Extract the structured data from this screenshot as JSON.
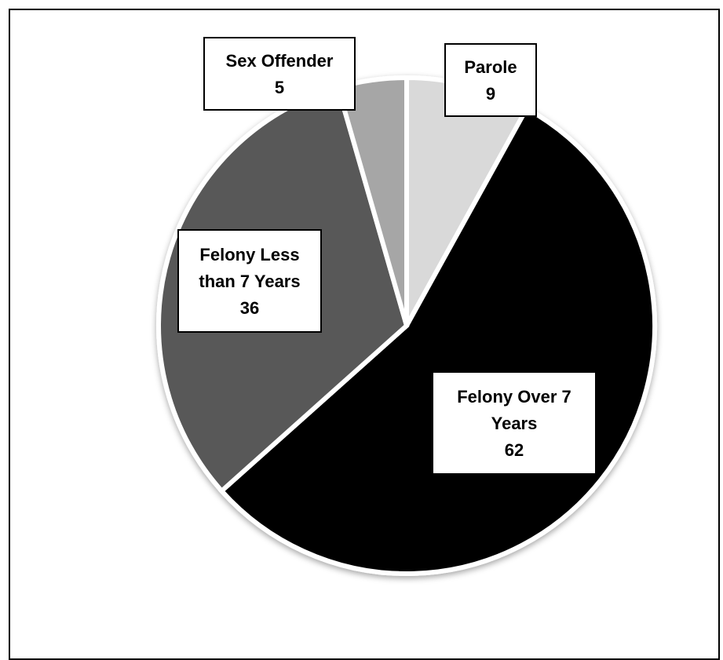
{
  "chart_data": {
    "type": "pie",
    "title": "",
    "slices": [
      {
        "label": [
          "Parole"
        ],
        "value": 9,
        "color": "#d9d9d9"
      },
      {
        "label": [
          "Felony Over 7",
          "Years"
        ],
        "value": 62,
        "color": "#000000"
      },
      {
        "label": [
          "Felony Less",
          "than 7 Years"
        ],
        "value": 36,
        "color": "#595959"
      },
      {
        "label": [
          "Sex Offender"
        ],
        "value": 5,
        "color": "#a6a6a6"
      }
    ],
    "legend": "none",
    "slice_separator_color": "#ffffff"
  }
}
